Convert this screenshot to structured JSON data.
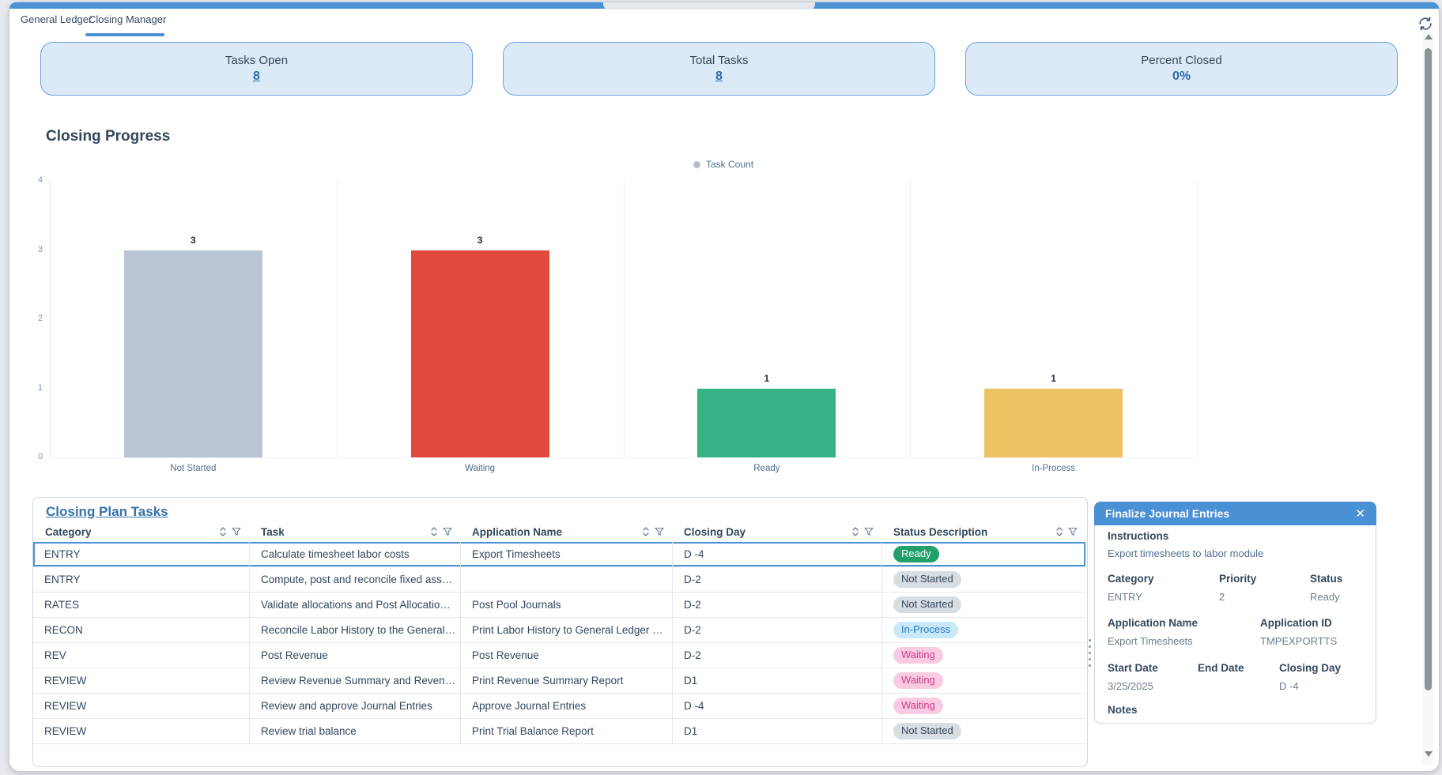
{
  "tabs": {
    "items": [
      {
        "label": "General Ledger"
      },
      {
        "label": "Closing Manager"
      }
    ],
    "active_index": 1
  },
  "toolbar": {
    "refresh_icon": "refresh"
  },
  "summary_cards": [
    {
      "title": "Tasks Open",
      "value": "8",
      "is_link": true
    },
    {
      "title": "Total Tasks",
      "value": "8",
      "is_link": true
    },
    {
      "title": "Percent Closed",
      "value": "0%",
      "is_link": false
    }
  ],
  "chart_data": {
    "type": "bar",
    "title": "Closing Progress",
    "legend": [
      {
        "label": "Task Count",
        "color": "#b6bec8"
      }
    ],
    "legend_position": "top-center",
    "categories": [
      "Not Started",
      "Waiting",
      "Ready",
      "In-Process"
    ],
    "values": [
      3,
      3,
      1,
      1
    ],
    "bar_colors": [
      "#b9c4d4",
      "#e04a3f",
      "#35b384",
      "#edc262"
    ],
    "xlabel": "",
    "ylabel": "",
    "ylim": [
      0,
      4
    ],
    "yticks": [
      0,
      1,
      2,
      3,
      4
    ],
    "grid": "category-separators"
  },
  "table": {
    "title": "Closing Plan Tasks",
    "columns": [
      "Category",
      "Task",
      "Application Name",
      "Closing Day",
      "Status Description"
    ],
    "rows": [
      {
        "category": "ENTRY",
        "task": "Calculate timesheet labor costs",
        "application": "Export Timesheets",
        "closing_day": "D -4",
        "status": "Ready",
        "status_style": "ready",
        "selected": true
      },
      {
        "category": "ENTRY",
        "task": "Compute, post and reconcile fixed ass…",
        "application": "",
        "closing_day": "D-2",
        "status": "Not Started",
        "status_style": "not-started",
        "selected": false
      },
      {
        "category": "RATES",
        "task": "Validate allocations and Post Allocatio…",
        "application": "Post Pool Journals",
        "closing_day": "D-2",
        "status": "Not Started",
        "status_style": "not-started",
        "selected": false
      },
      {
        "category": "RECON",
        "task": "Reconcile Labor History to the General…",
        "application": "Print Labor History to General Ledger …",
        "closing_day": "D-2",
        "status": "In-Process",
        "status_style": "in-process",
        "selected": false
      },
      {
        "category": "REV",
        "task": "Post Revenue",
        "application": "Post Revenue",
        "closing_day": "D-2",
        "status": "Waiting",
        "status_style": "waiting",
        "selected": false
      },
      {
        "category": "REVIEW",
        "task": "Review Revenue Summary and Reven…",
        "application": "Print Revenue Summary Report",
        "closing_day": "D1",
        "status": "Waiting",
        "status_style": "waiting",
        "selected": false
      },
      {
        "category": "REVIEW",
        "task": "Review and approve Journal Entries",
        "application": "Approve Journal Entries",
        "closing_day": "D -4",
        "status": "Waiting",
        "status_style": "waiting",
        "selected": false
      },
      {
        "category": "REVIEW",
        "task": "Review trial balance",
        "application": "Print Trial Balance Report",
        "closing_day": "D1",
        "status": "Not Started",
        "status_style": "not-started",
        "selected": false
      }
    ]
  },
  "detail_panel": {
    "title": "Finalize Journal Entries",
    "close_icon": "✕",
    "instructions_label": "Instructions",
    "instructions": "Export timesheets to labor module",
    "category_label": "Category",
    "category": "ENTRY",
    "priority_label": "Priority",
    "priority": "2",
    "status_label": "Status",
    "status": "Ready",
    "application_name_label": "Application Name",
    "application_name": "Export Timesheets",
    "application_id_label": "Application ID",
    "application_id": "TMPEXPORTTS",
    "start_date_label": "Start Date",
    "start_date": "3/25/2025",
    "end_date_label": "End Date",
    "end_date": "",
    "closing_day_label": "Closing Day",
    "closing_day": "D -4",
    "notes_label": "Notes"
  },
  "colors": {
    "accent": "#4a90d5",
    "card_bg": "#dce9f6",
    "card_border": "#69a2dc",
    "navy_text": "#33475b",
    "link_blue": "#2f6cb0",
    "status_ready_bg": "#21a06b",
    "status_ready_text": "#ffffff",
    "status_not_started_bg": "#d8dde4",
    "status_not_started_text": "#33475b",
    "status_in_process_bg": "#c7e9f9",
    "status_in_process_text": "#2a77c0",
    "status_waiting_bg": "#f8cbe2",
    "status_waiting_text": "#d03e86"
  }
}
